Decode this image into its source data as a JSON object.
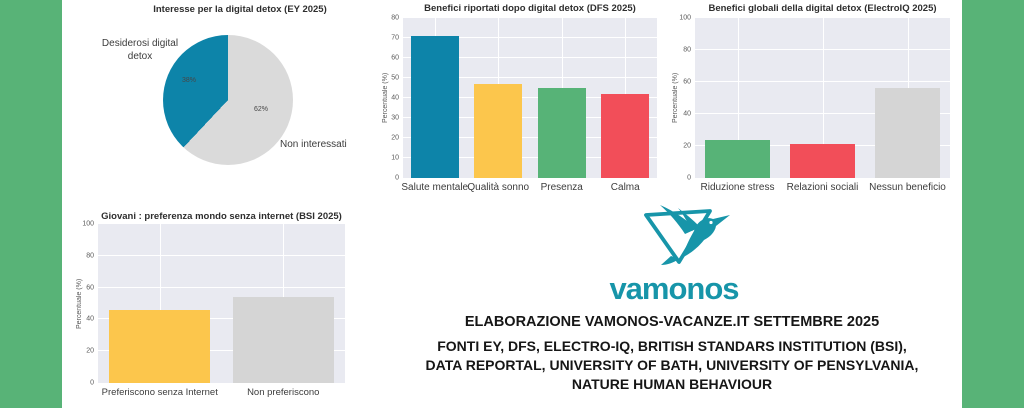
{
  "frame": {
    "color": "#58B377"
  },
  "brand": {
    "wordmark": "vamonos",
    "color": "#1795A9",
    "logo_icon": "hummingbird-triangle-logo"
  },
  "footer": {
    "line1": "ELABORAZIONE VAMONOS-VACANZE.IT SETTEMBRE 2025",
    "fonti": [
      "FONTI EY, DFS, ELECTRO-IQ, BRITISH STANDARS INSTITUTION (BSI),",
      "DATA REPORTAL, UNIVERSITY OF BATH, UNIVERSITY OF PENSYLVANIA,",
      "NATURE HUMAN BEHAVIOUR"
    ]
  },
  "chart_data": [
    {
      "type": "pie",
      "title": "Interesse per la digital detox (EY 2025)",
      "slices": [
        {
          "label": "Desiderosi digital detox",
          "value": 38,
          "pct_label": "38%",
          "color": "#0D84A9"
        },
        {
          "label": "Non interessati",
          "value": 62,
          "pct_label": "62%",
          "color": "#DADADA"
        }
      ],
      "start_angle_deg": 90,
      "direction": "counterclockwise"
    },
    {
      "type": "bar",
      "title": "Benefici riportati dopo digital detox (DFS 2025)",
      "ylabel": "Percentuale (%)",
      "ymax": 80,
      "yticks": [
        0,
        10,
        20,
        30,
        40,
        50,
        60,
        70,
        80
      ],
      "categories": [
        "Salute mentale",
        "Qualità sonno",
        "Presenza",
        "Calma"
      ],
      "values": [
        71,
        47,
        45,
        42
      ],
      "colors": [
        "#0D84A9",
        "#FCC64C",
        "#57B377",
        "#F24E59"
      ],
      "bar_frac": 0.76,
      "grid": true,
      "plot_bg": "#e9eaf1"
    },
    {
      "type": "bar",
      "title": "Benefici globali della digital detox (ElectroIQ 2025)",
      "ylabel": "Percentuale (%)",
      "ymax": 100,
      "yticks": [
        0,
        20,
        40,
        60,
        80,
        100
      ],
      "categories": [
        "Riduzione stress",
        "Relazioni sociali",
        "Nessun beneficio"
      ],
      "values": [
        24,
        21,
        56
      ],
      "colors": [
        "#57B377",
        "#F24E59",
        "#D5D5D5"
      ],
      "bar_frac": 0.76,
      "grid": true,
      "plot_bg": "#e9eaf1"
    },
    {
      "type": "bar",
      "title": "Giovani : preferenza mondo senza internet (BSI 2025)",
      "ylabel": "Percentuale (%)",
      "ymax": 100,
      "yticks": [
        0,
        20,
        40,
        60,
        80,
        100
      ],
      "categories": [
        "Preferiscono senza Internet",
        "Non preferiscono"
      ],
      "values": [
        46,
        54
      ],
      "colors": [
        "#FCC64C",
        "#D5D5D5"
      ],
      "bar_frac": 0.82,
      "grid": true,
      "plot_bg": "#e9eaf1"
    }
  ]
}
